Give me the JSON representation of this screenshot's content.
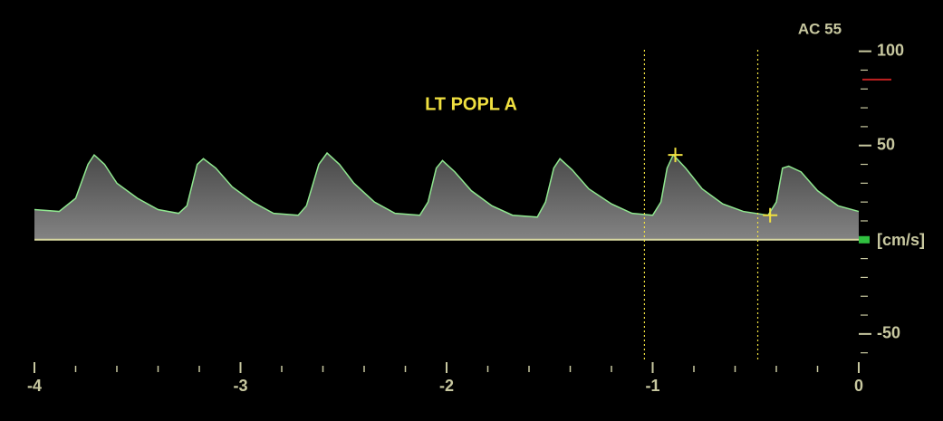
{
  "chart_data": {
    "type": "line",
    "title": "LT POPL A",
    "annotation": "AC 55",
    "ylabel": "[cm/s]",
    "x": [
      -4.0,
      -3.88,
      -3.8,
      -3.74,
      -3.71,
      -3.66,
      -3.6,
      -3.5,
      -3.4,
      -3.3,
      -3.26,
      -3.21,
      -3.18,
      -3.12,
      -3.04,
      -2.94,
      -2.84,
      -2.72,
      -2.68,
      -2.62,
      -2.58,
      -2.52,
      -2.45,
      -2.35,
      -2.25,
      -2.13,
      -2.09,
      -2.05,
      -2.02,
      -1.96,
      -1.88,
      -1.78,
      -1.68,
      -1.56,
      -1.52,
      -1.48,
      -1.45,
      -1.39,
      -1.31,
      -1.2,
      -1.1,
      -1.0,
      -0.96,
      -0.93,
      -0.9,
      -0.84,
      -0.76,
      -0.66,
      -0.56,
      -0.44,
      -0.4,
      -0.37,
      -0.34,
      -0.28,
      -0.2,
      -0.1,
      0.0
    ],
    "series": [
      {
        "color": "#90e890",
        "values": [
          16,
          15,
          22,
          40,
          45,
          40,
          30,
          22,
          16,
          14,
          18,
          40,
          43,
          38,
          28,
          20,
          14,
          13,
          18,
          40,
          46,
          40,
          30,
          20,
          14,
          13,
          20,
          38,
          42,
          36,
          26,
          18,
          13,
          12,
          20,
          38,
          43,
          37,
          27,
          19,
          14,
          13,
          20,
          38,
          45,
          38,
          27,
          19,
          15,
          13,
          20,
          38,
          39,
          36,
          26,
          18,
          15
        ]
      }
    ],
    "xlim": [
      -4,
      0
    ],
    "xticks": [
      -4,
      -3,
      -2,
      -1,
      0
    ],
    "xminorticks": [
      -3.8,
      -3.6,
      -3.4,
      -3.2,
      -2.8,
      -2.6,
      -2.4,
      -2.2,
      -1.8,
      -1.6,
      -1.4,
      -1.2,
      -0.8,
      -0.6,
      -0.4,
      -0.2
    ],
    "ylim": [
      -64,
      120
    ],
    "yticks": [
      100,
      50,
      -50
    ],
    "yminorticks": [
      90,
      80,
      70,
      60,
      40,
      30,
      20,
      10,
      -10,
      -20,
      -30,
      -40,
      -60
    ],
    "cursor_lines": [
      -1.04,
      -0.49
    ],
    "calipers": [
      {
        "x": -0.89,
        "y": 45
      },
      {
        "x": -0.43,
        "y": 13
      }
    ],
    "scale_marker": 85,
    "axis_color": "#c8c8a0",
    "title_color": "#f0e040",
    "caliper_color": "#f0e040",
    "baseline_color": "#d8d8a0"
  }
}
